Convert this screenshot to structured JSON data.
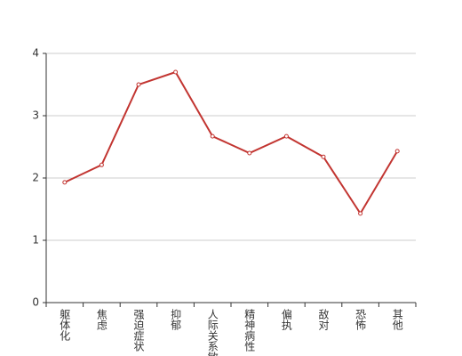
{
  "chart_data": {
    "type": "line",
    "categories": [
      "躯体化",
      "焦虑",
      "强迫症状",
      "抑郁",
      "人际关系敏感",
      "精神病性",
      "偏执",
      "敌对",
      "恐怖",
      "其他"
    ],
    "values": [
      1.93,
      2.21,
      3.5,
      3.7,
      2.67,
      2.4,
      2.67,
      2.34,
      1.43,
      2.43
    ],
    "color": "#c23531",
    "ylim": [
      0,
      4
    ],
    "yticks": [
      0,
      1,
      2,
      3,
      4
    ],
    "grid": true
  }
}
